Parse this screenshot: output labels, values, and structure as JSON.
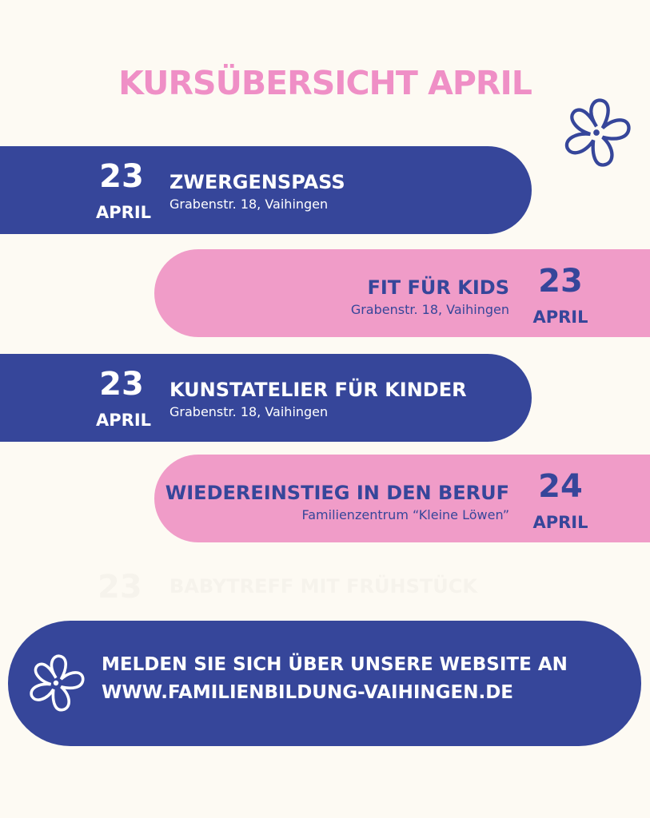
{
  "title": "KURSÜBERSICHT APRIL",
  "courses": [
    {
      "day": "23",
      "month": "APRIL",
      "name": "ZWERGENSPASS",
      "address": "Grabenstr. 18, Vaihingen"
    },
    {
      "day": "23",
      "month": "APRIL",
      "name": "FIT FÜR KIDS",
      "address": "Grabenstr. 18, Vaihingen"
    },
    {
      "day": "23",
      "month": "APRIL",
      "name": "KUNSTATELIER FÜR KINDER",
      "address": "Grabenstr. 18, Vaihingen"
    },
    {
      "day": "24",
      "month": "APRIL",
      "name": "WIEDEREINSTIEG IN DEN BERUF",
      "address": "Familienzentrum “Kleine Löwen”"
    }
  ],
  "faded_course": {
    "day": "23",
    "name": "BABYTREFF MIT FRÜHSTÜCK"
  },
  "cta": {
    "line1": "MELDEN SIE SICH ÜBER UNSERE WEBSITE AN",
    "line2": "WWW.FAMILIENBILDUNG-VAIHINGEN.DE"
  },
  "colors": {
    "background": "#fdfaf3",
    "blue": "#36469a",
    "pink": "#f09cc8",
    "title_pink": "#ef8fc6"
  },
  "icons": [
    "flower-icon"
  ]
}
